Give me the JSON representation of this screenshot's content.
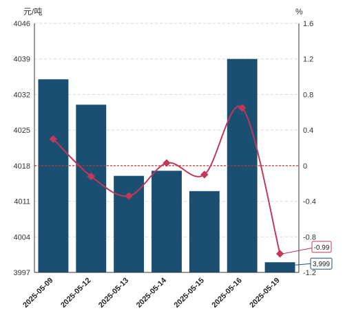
{
  "chart_data": {
    "type": "bar",
    "categories": [
      "2025-05-09",
      "2025-05-12",
      "2025-05-13",
      "2025-05-14",
      "2025-05-15",
      "2025-05-16",
      "2025-05-19"
    ],
    "series": [
      {
        "type": "bar",
        "axis": "left",
        "values": [
          4035,
          4030,
          4016,
          4017,
          4013,
          4039,
          3999
        ]
      },
      {
        "type": "line",
        "axis": "right",
        "values": [
          0.3,
          -0.12,
          -0.34,
          0.03,
          -0.1,
          0.65,
          -0.99
        ]
      }
    ],
    "ylabel_left": "元/吨",
    "ylabel_right": "%",
    "y_left_ticks": [
      3997,
      4004,
      4011,
      4018,
      4025,
      4032,
      4039,
      4046
    ],
    "y_right_ticks": [
      "-1.2",
      "-0.8",
      "-0.4",
      "0",
      "0.4",
      "0.8",
      "1.2",
      "1.6"
    ],
    "ylim_left": [
      3997,
      4046
    ],
    "ylim_right": [
      -1.2,
      1.6
    ],
    "reference_line": {
      "axis": "right",
      "value": 0
    },
    "annotations": {
      "bar_last": "3,999",
      "line_last": "-0.99"
    },
    "grid": true,
    "colors": {
      "bar": "#1b4f72",
      "line": "#c0395a",
      "reference": "#c0392b"
    }
  }
}
